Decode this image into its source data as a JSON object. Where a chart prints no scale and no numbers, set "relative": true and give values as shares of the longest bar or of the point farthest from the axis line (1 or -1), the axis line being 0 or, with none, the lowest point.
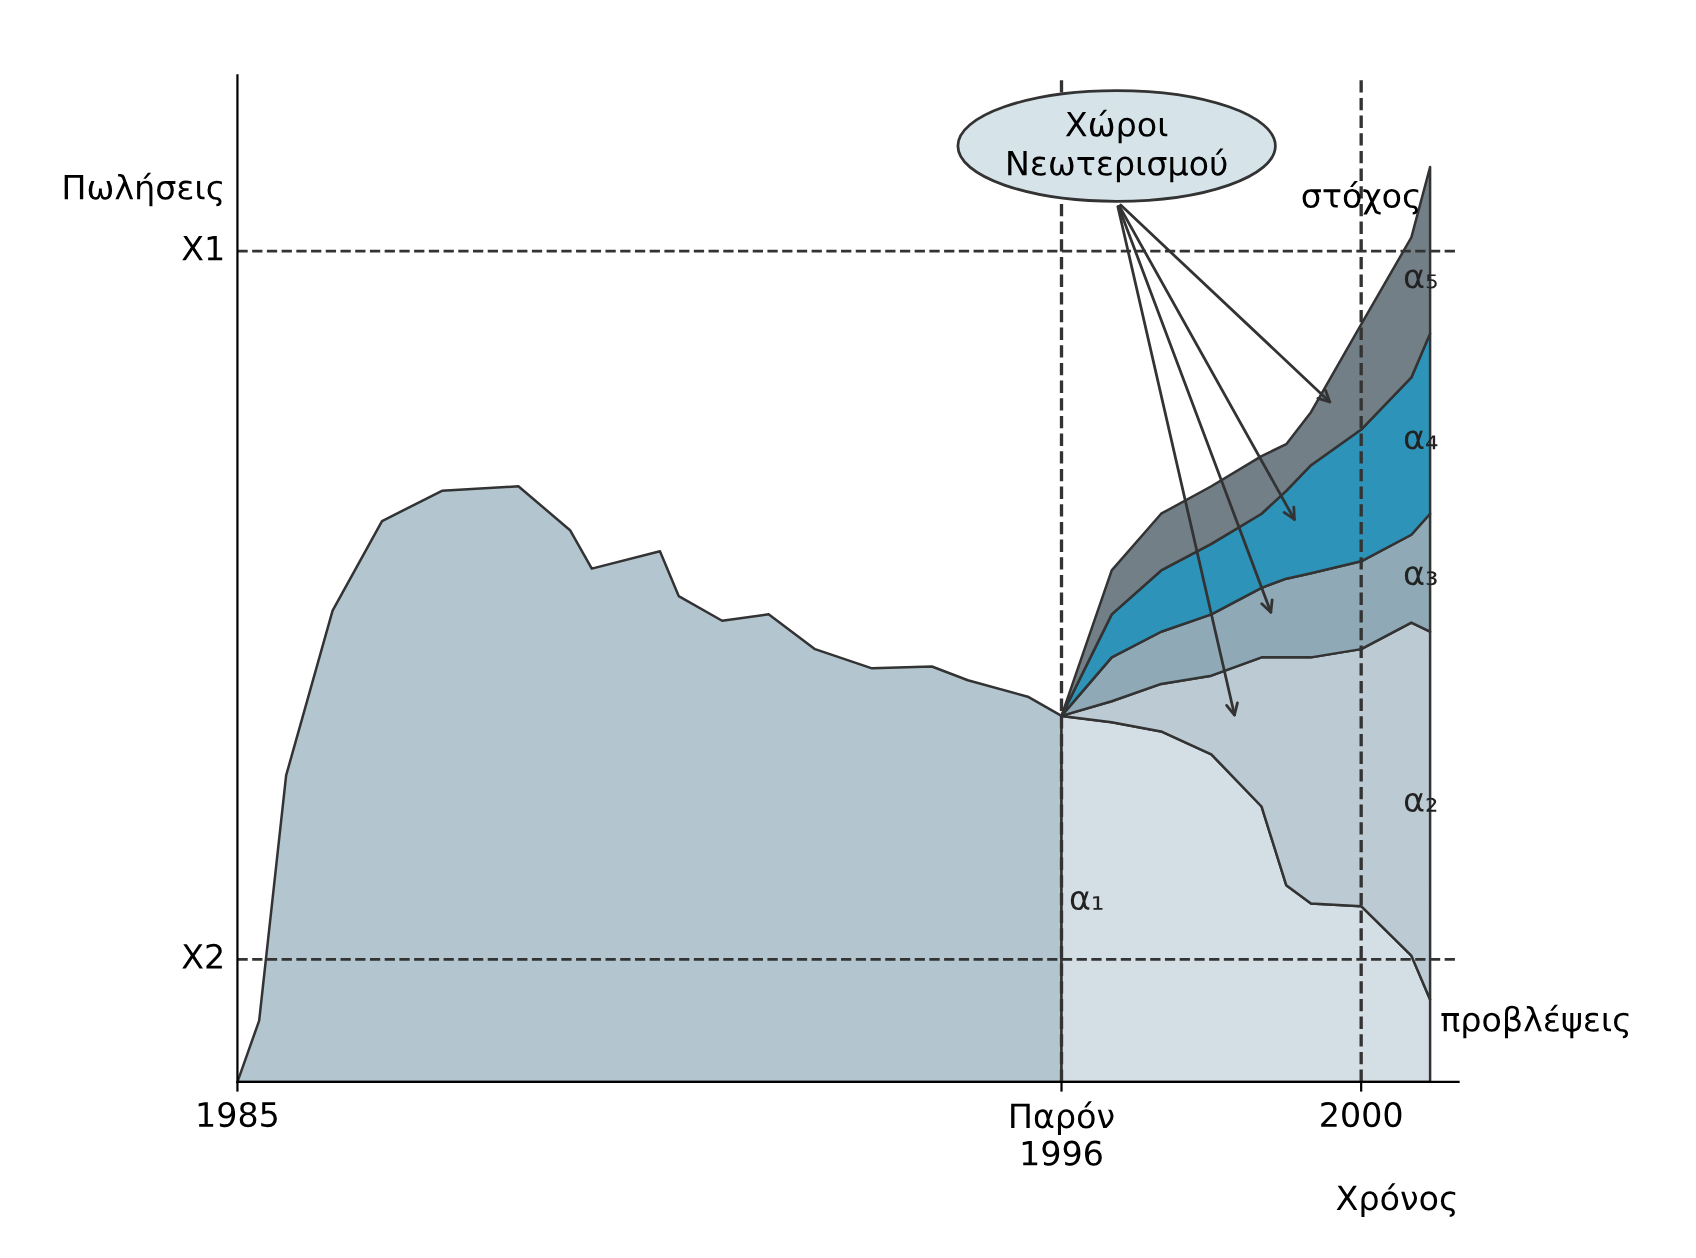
{
  "chart_data": {
    "type": "area",
    "stacked": true,
    "relative": true,
    "xlabel": "Χρόνος",
    "ylabel": "Πωλήσεις",
    "xlim": [
      1985,
      2001.3
    ],
    "xticks": [
      1985,
      {
        "value": 1996,
        "label": "Παρόν\n1996"
      },
      2000
    ],
    "x": [
      1985,
      1985.29,
      1985.65,
      1986.27,
      1986.93,
      1987.73,
      1988.75,
      1989.44,
      1989.73,
      1990.64,
      1990.89,
      1991.47,
      1992.09,
      1992.71,
      1993.47,
      1994.27,
      1994.75,
      1995.55,
      1996,
      1996,
      1996.67,
      1997.33,
      1998,
      1998.67,
      1999,
      1999.33,
      2000,
      2000.67,
      2000.92
    ],
    "series": [
      {
        "color": "#b3c6cf",
        "values": [
          0,
          0.067,
          0.335,
          0.515,
          0.613,
          0.646,
          0.651,
          0.603,
          0.561,
          0.58,
          0.531,
          0.504,
          0.511,
          0.473,
          0.452,
          0.454,
          0.439,
          0.421,
          0.4,
          null,
          null,
          null,
          null,
          null,
          null,
          null,
          null,
          null,
          null
        ]
      },
      {
        "name": "α₁",
        "color": "#d4dfe5",
        "values": [
          null,
          null,
          null,
          null,
          null,
          null,
          null,
          null,
          null,
          null,
          null,
          null,
          null,
          null,
          null,
          null,
          null,
          null,
          null,
          0.4,
          0.393,
          0.383,
          0.358,
          0.301,
          0.215,
          0.195,
          0.192,
          0.138,
          0.09
        ]
      },
      {
        "name": "α₂",
        "color": "#bccbd3",
        "values": [
          null,
          null,
          null,
          null,
          null,
          null,
          null,
          null,
          null,
          null,
          null,
          null,
          null,
          null,
          null,
          null,
          null,
          null,
          null,
          0,
          0.023,
          0.052,
          0.086,
          0.163,
          0.249,
          0.269,
          0.281,
          0.364,
          0.402
        ]
      },
      {
        "name": "α₃",
        "color": "#8fa9b6",
        "values": [
          null,
          null,
          null,
          null,
          null,
          null,
          null,
          null,
          null,
          null,
          null,
          null,
          null,
          null,
          null,
          null,
          null,
          null,
          null,
          0,
          0.048,
          0.057,
          0.067,
          0.076,
          0.086,
          0.092,
          0.096,
          0.096,
          0.129
        ]
      },
      {
        "name": "α₄",
        "color": "#2e93b8",
        "values": [
          null,
          null,
          null,
          null,
          null,
          null,
          null,
          null,
          null,
          null,
          null,
          null,
          null,
          null,
          null,
          null,
          null,
          null,
          null,
          0,
          0.047,
          0.067,
          0.077,
          0.081,
          0.096,
          0.118,
          0.144,
          0.172,
          0.197
        ]
      },
      {
        "name": "α₅",
        "color": "#727f87",
        "values": [
          null,
          null,
          null,
          null,
          null,
          null,
          null,
          null,
          null,
          null,
          null,
          null,
          null,
          null,
          null,
          null,
          null,
          null,
          null,
          0,
          0.048,
          0.062,
          0.063,
          0.063,
          0.051,
          0.058,
          0.115,
          0.153,
          0.182
        ]
      }
    ],
    "ref_lines": [
      {
        "axis": "y",
        "value": 0.908,
        "label": "X1",
        "line_style": "dashed"
      },
      {
        "axis": "y",
        "value": 0.134,
        "label": "X2",
        "line_style": "dashed"
      },
      {
        "axis": "x",
        "value": 1996,
        "line_style": "dashed"
      },
      {
        "axis": "x",
        "value": 2000,
        "line_style": "dashed"
      }
    ],
    "annotations": [
      "Χώροι\nΝεωτερισμού",
      "στόχος",
      "προβλέψεις"
    ],
    "grid": false
  }
}
